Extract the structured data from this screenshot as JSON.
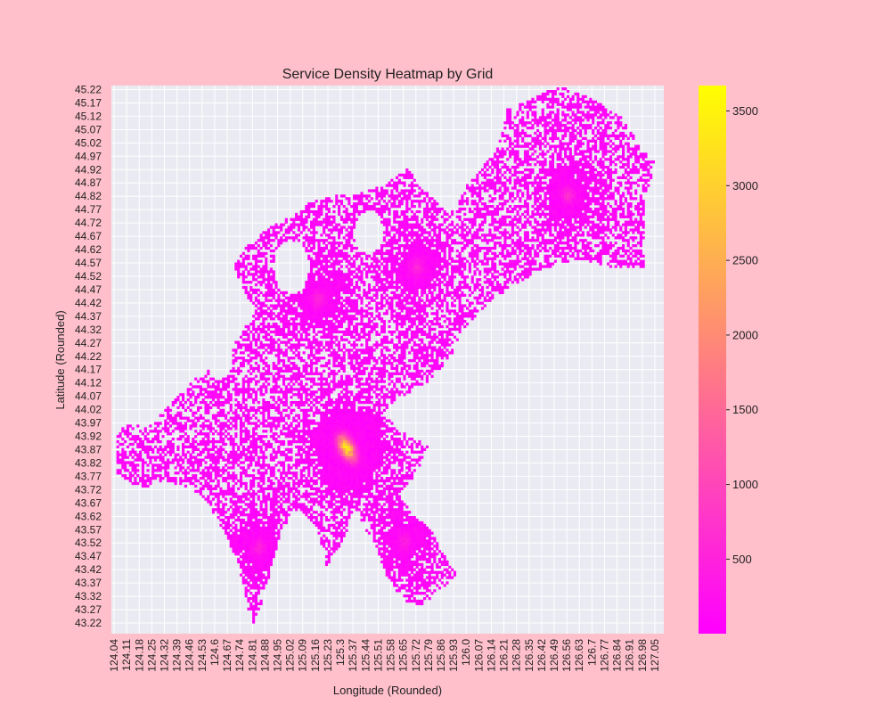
{
  "chart_data": {
    "type": "heatmap",
    "title": "Service Density Heatmap by Grid",
    "xlabel": "Longitude (Rounded)",
    "ylabel": "Latitude (Rounded)",
    "x_tick_labels": [
      "124.04",
      "124.11",
      "124.18",
      "124.25",
      "124.32",
      "124.39",
      "124.46",
      "124.53",
      "124.6",
      "124.67",
      "124.74",
      "124.81",
      "124.88",
      "124.95",
      "125.02",
      "125.09",
      "125.16",
      "125.23",
      "125.3",
      "125.37",
      "125.44",
      "125.51",
      "125.58",
      "125.65",
      "125.72",
      "125.79",
      "125.86",
      "125.93",
      "126.0",
      "126.07",
      "126.14",
      "126.21",
      "126.28",
      "126.35",
      "126.42",
      "126.49",
      "126.56",
      "126.63",
      "126.7",
      "126.77",
      "126.84",
      "126.91",
      "126.98",
      "127.05"
    ],
    "y_tick_labels": [
      "45.22",
      "45.17",
      "45.12",
      "45.07",
      "45.02",
      "44.97",
      "44.92",
      "44.87",
      "44.82",
      "44.77",
      "44.72",
      "44.67",
      "44.62",
      "44.57",
      "44.52",
      "44.47",
      "44.42",
      "44.37",
      "44.32",
      "44.27",
      "44.22",
      "44.17",
      "44.12",
      "44.07",
      "44.02",
      "43.97",
      "43.92",
      "43.87",
      "43.82",
      "43.77",
      "43.72",
      "43.67",
      "43.62",
      "43.57",
      "43.52",
      "43.47",
      "43.42",
      "43.37",
      "43.32",
      "43.27",
      "43.22"
    ],
    "colorbar": {
      "ticks": [
        500,
        1000,
        1500,
        2000,
        2500,
        3000,
        3500
      ],
      "range": [
        1,
        3670
      ],
      "colormap": "spring"
    },
    "grid": true,
    "hotspots": [
      {
        "lon": 125.33,
        "lat": 43.87,
        "value": 3670
      },
      {
        "lon": 125.3,
        "lat": 43.9,
        "value": 1800
      },
      {
        "lon": 125.36,
        "lat": 43.84,
        "value": 1500
      },
      {
        "lon": 126.56,
        "lat": 44.82,
        "value": 700
      },
      {
        "lon": 125.72,
        "lat": 44.55,
        "value": 600
      },
      {
        "lon": 125.17,
        "lat": 44.43,
        "value": 550
      },
      {
        "lon": 124.84,
        "lat": 43.5,
        "value": 450
      },
      {
        "lon": 125.65,
        "lat": 43.52,
        "value": 400
      }
    ]
  },
  "colors": {
    "background": "#ffc0cb",
    "axes_face": "#eaeaf2",
    "grid": "#ffffff",
    "cmap_low": "#ff00ff",
    "cmap_high": "#ffff00"
  }
}
